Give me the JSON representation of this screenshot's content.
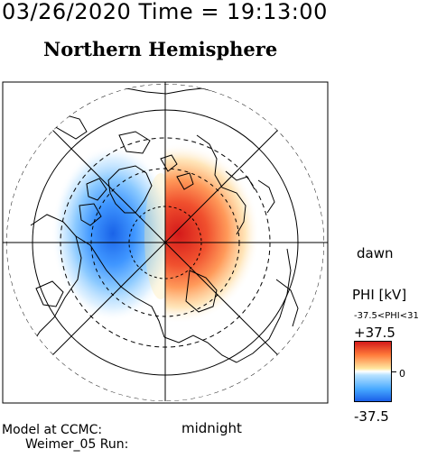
{
  "header": {
    "time_title": "03/26/2020 Time = 19:13:00",
    "hemisphere_title": "Northern Hemisphere"
  },
  "map": {
    "projection": "north polar stereographic",
    "orientation_labels": {
      "right": "dawn",
      "bottom": "midnight"
    },
    "potential_pattern": {
      "positive_cell": "dawn / right side, red",
      "negative_cell": "dusk / left side, blue"
    }
  },
  "colorbar": {
    "title": "PHI [kV]",
    "range_text": "-37.5<PHI<31",
    "max_label": "+37.5",
    "zero_label": "0",
    "min_label": "-37.5",
    "colors": {
      "max": "#d41a1a",
      "mid": "#ffffff",
      "min": "#1a5fe8"
    }
  },
  "footer": {
    "model_line1": "Model at CCMC:",
    "model_line2": "Weimer_05 Run:"
  }
}
